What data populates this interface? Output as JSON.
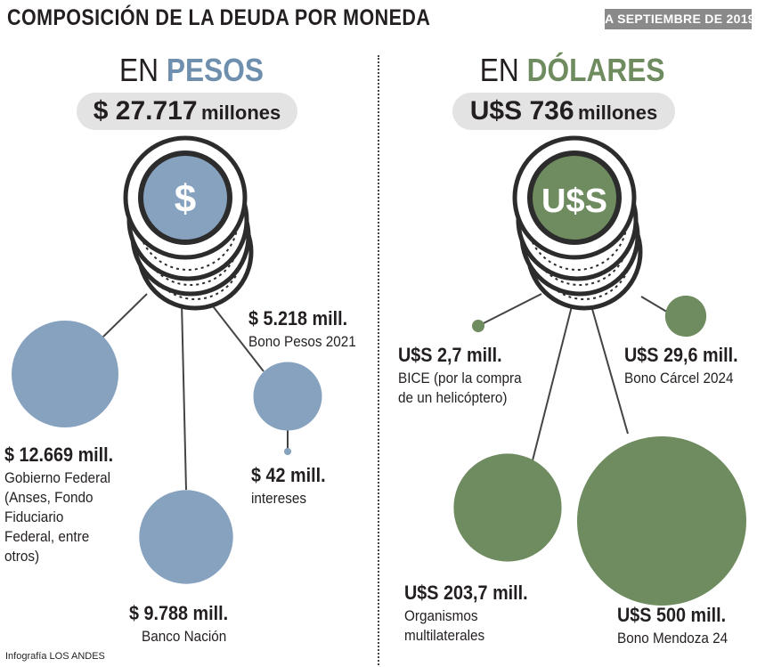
{
  "title": "COMPOSICIÓN DE LA DEUDA POR MONEDA",
  "date_badge": "A SEPTIEMBRE DE 2019",
  "credit": "Infografía LOS ANDES",
  "colors": {
    "pesos": "#87a2bf",
    "dolares": "#6f8b60",
    "coin_edge": "#2c2c2c",
    "pill": "#e3e3e3"
  },
  "pesos": {
    "prefix": "EN",
    "accent": "PESOS",
    "total_amount": "$ 27.717",
    "total_unit": "millones",
    "coin_symbol": "$"
  },
  "dolares": {
    "prefix": "EN",
    "accent": "DÓLARES",
    "total_amount": "U$S 736",
    "total_unit": "millones",
    "coin_symbol": "U$S"
  },
  "chart_data": [
    {
      "type": "bubble",
      "title": "EN PESOS",
      "unit": "millones de pesos",
      "items": [
        {
          "value": 12669,
          "value_label": "$ 12.669 mill.",
          "desc": [
            "Gobierno Federal",
            "(Anses, Fondo",
            "Fiduciario",
            "Federal, entre",
            "otros)"
          ]
        },
        {
          "value": 9788,
          "value_label": "$ 9.788 mill.",
          "desc": [
            "Banco Nación"
          ]
        },
        {
          "value": 5218,
          "value_label": "$ 5.218 mill.",
          "desc": [
            "Bono Pesos 2021"
          ]
        },
        {
          "value": 42,
          "value_label": "$ 42 mill.",
          "desc": [
            "intereses"
          ]
        }
      ]
    },
    {
      "type": "bubble",
      "title": "EN DÓLARES",
      "unit": "millones de dólares",
      "items": [
        {
          "value": 2.7,
          "value_label": "U$S 2,7 mill.",
          "desc": [
            "BICE (por la compra",
            "de un helicóptero)"
          ]
        },
        {
          "value": 29.6,
          "value_label": "U$S 29,6 mill.",
          "desc": [
            "Bono Cárcel 2024"
          ]
        },
        {
          "value": 203.7,
          "value_label": "U$S 203,7 mill.",
          "desc": [
            "Organismos",
            "multilaterales"
          ]
        },
        {
          "value": 500,
          "value_label": "U$S 500 mill.",
          "desc": [
            "Bono Mendoza 24"
          ]
        }
      ]
    }
  ]
}
